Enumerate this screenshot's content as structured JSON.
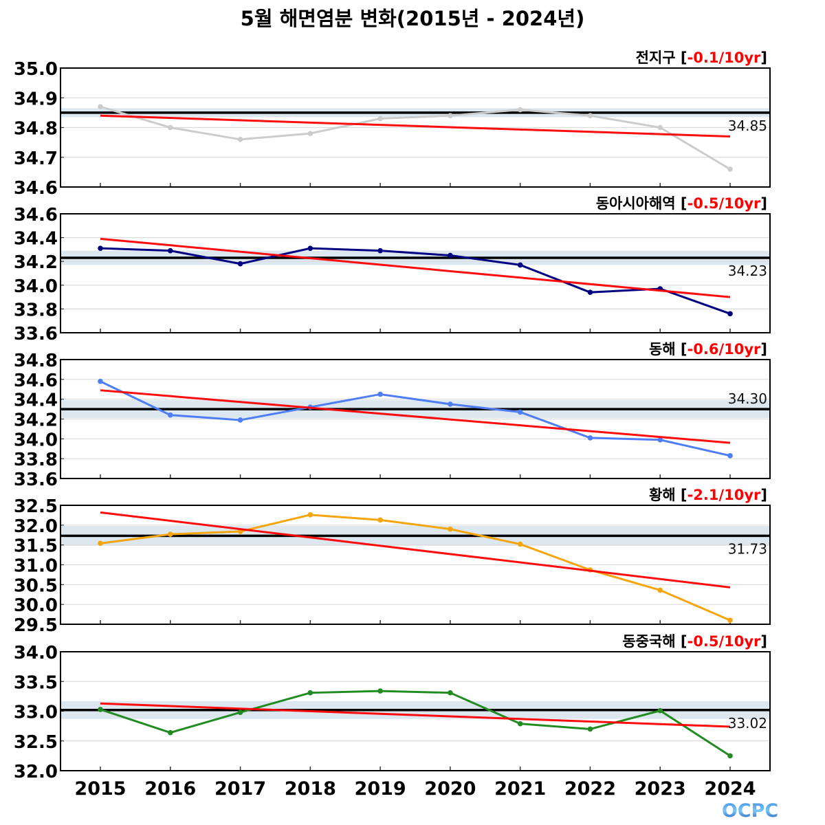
{
  "title": "5월 해면염분 변화(2015년 - 2024년)",
  "logo_text": "OCPC",
  "chart_data": [
    {
      "type": "line",
      "panel_title": "전지구",
      "trend_label": "-0.1/10yr",
      "x": [
        "2015",
        "2016",
        "2017",
        "2018",
        "2019",
        "2020",
        "2021",
        "2022",
        "2023",
        "2024"
      ],
      "values": [
        34.87,
        34.8,
        34.76,
        34.78,
        34.83,
        34.84,
        34.86,
        34.84,
        34.8,
        34.66
      ],
      "trend_line": [
        34.84,
        34.77
      ],
      "mean": 34.85,
      "mean_label": "34.85",
      "band_halfwidth": 0.015,
      "ylim": [
        34.6,
        35.0
      ],
      "yticks": [
        "35.0",
        "34.9",
        "34.8",
        "34.7",
        "34.6"
      ],
      "line_color": "#cccccc"
    },
    {
      "type": "line",
      "panel_title": "동아시아해역",
      "trend_label": "-0.5/10yr",
      "x": [
        "2015",
        "2016",
        "2017",
        "2018",
        "2019",
        "2020",
        "2021",
        "2022",
        "2023",
        "2024"
      ],
      "values": [
        34.31,
        34.29,
        34.18,
        34.31,
        34.29,
        34.25,
        34.17,
        33.94,
        33.97,
        33.76
      ],
      "trend_line": [
        34.39,
        33.9
      ],
      "mean": 34.23,
      "mean_label": "34.23",
      "band_halfwidth": 0.06,
      "ylim": [
        33.6,
        34.6
      ],
      "yticks": [
        "34.6",
        "34.4",
        "34.2",
        "34.0",
        "33.8",
        "33.6"
      ],
      "line_color": "#000080"
    },
    {
      "type": "line",
      "panel_title": "동해",
      "trend_label": "-0.6/10yr",
      "x": [
        "2015",
        "2016",
        "2017",
        "2018",
        "2019",
        "2020",
        "2021",
        "2022",
        "2023",
        "2024"
      ],
      "values": [
        34.58,
        34.24,
        34.19,
        34.32,
        34.45,
        34.35,
        34.27,
        34.01,
        33.99,
        33.83
      ],
      "trend_line": [
        34.49,
        33.96
      ],
      "mean": 34.3,
      "mean_label": "34.30",
      "band_halfwidth": 0.09,
      "ylim": [
        33.6,
        34.8
      ],
      "yticks": [
        "34.8",
        "34.6",
        "34.4",
        "34.2",
        "34.0",
        "33.8",
        "33.6"
      ],
      "line_color": "#4f7df5"
    },
    {
      "type": "line",
      "panel_title": "황해",
      "trend_label": "-2.1/10yr",
      "x": [
        "2015",
        "2016",
        "2017",
        "2018",
        "2019",
        "2020",
        "2021",
        "2022",
        "2023",
        "2024"
      ],
      "values": [
        31.54,
        31.77,
        31.84,
        32.26,
        32.13,
        31.9,
        31.52,
        30.87,
        30.36,
        29.6
      ],
      "trend_line": [
        32.32,
        30.43
      ],
      "mean": 31.73,
      "mean_label": "31.73",
      "band_halfwidth": 0.25,
      "ylim": [
        29.5,
        32.5
      ],
      "yticks": [
        "32.5",
        "32.0",
        "31.5",
        "31.0",
        "30.5",
        "30.0",
        "29.5"
      ],
      "line_color": "#f5a50d"
    },
    {
      "type": "line",
      "panel_title": "동중국해",
      "trend_label": "-0.5/10yr",
      "x": [
        "2015",
        "2016",
        "2017",
        "2018",
        "2019",
        "2020",
        "2021",
        "2022",
        "2023",
        "2024"
      ],
      "values": [
        33.03,
        32.64,
        32.98,
        33.31,
        33.34,
        33.31,
        32.79,
        32.7,
        33.01,
        32.25
      ],
      "trend_line": [
        33.13,
        32.74
      ],
      "mean": 33.02,
      "mean_label": "33.02",
      "band_halfwidth": 0.15,
      "ylim": [
        32.0,
        34.0
      ],
      "yticks": [
        "34.0",
        "33.5",
        "33.0",
        "32.5",
        "32.0"
      ],
      "line_color": "#228b22"
    }
  ],
  "colors": {
    "trend": "#ff0000",
    "mean": "#000000",
    "band": "#dde7f0",
    "grid": "#dcdcdc"
  }
}
